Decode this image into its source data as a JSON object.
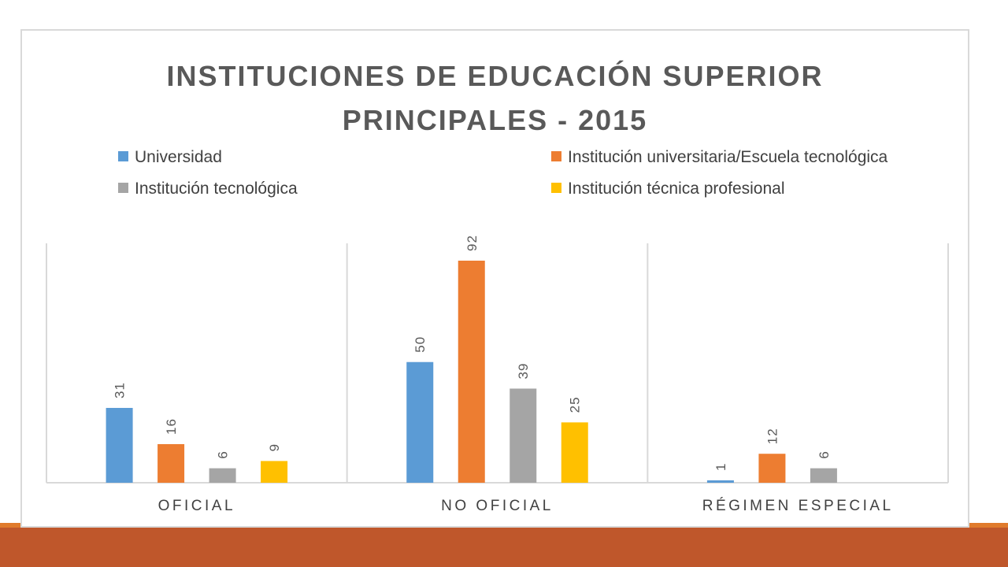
{
  "chart_data": {
    "type": "bar",
    "title": "INSTITUCIONES  DE  EDUCACIÓN  SUPERIOR\nPRINCIPALES  -  2015",
    "categories": [
      "OFICIAL",
      "NO OFICIAL",
      "RÉGIMEN ESPECIAL"
    ],
    "series": [
      {
        "name": "Universidad",
        "color": "#5b9bd5",
        "values": [
          31,
          50,
          1
        ]
      },
      {
        "name": "Institución universitaria/Escuela tecnológica",
        "color": "#ed7d31",
        "values": [
          16,
          92,
          12
        ]
      },
      {
        "name": "Institución tecnológica",
        "color": "#a5a5a5",
        "values": [
          6,
          39,
          6
        ]
      },
      {
        "name": "Institución técnica profesional",
        "color": "#ffc000",
        "values": [
          9,
          25,
          null
        ]
      }
    ],
    "ylim": [
      0,
      100
    ],
    "grid": false,
    "legend_position": "top"
  }
}
